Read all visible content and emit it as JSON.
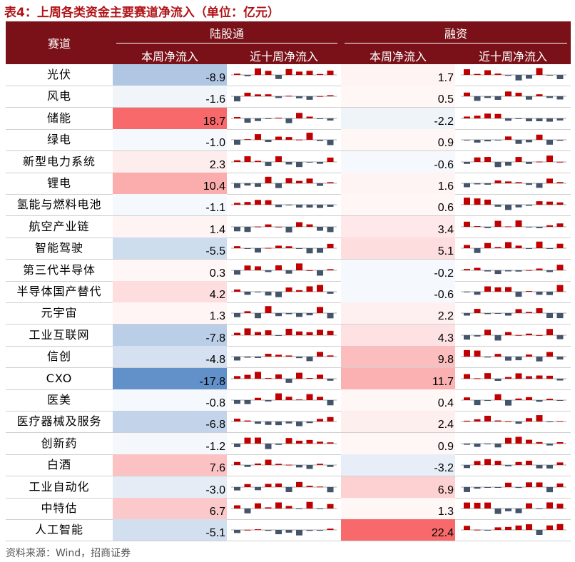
{
  "title": "表4：上周各类资金主要赛道净流入（单位：亿元）",
  "header": {
    "track": "赛道",
    "lgt": "陆股通",
    "rz": "融资",
    "week": "本周净流入",
    "ten": "近十周净流入"
  },
  "colors": {
    "pos": "#c00000",
    "neg": "#44546a",
    "pos_cell": "#f8696b",
    "neg_cell": "#5a8ac6"
  },
  "rows": [
    {
      "name": "光伏",
      "lgt": "-8.9",
      "rz": "1.7"
    },
    {
      "name": "风电",
      "lgt": "-1.6",
      "rz": "0.5"
    },
    {
      "name": "储能",
      "lgt": "18.7",
      "rz": "-2.2"
    },
    {
      "name": "绿电",
      "lgt": "-1.0",
      "rz": "0.9"
    },
    {
      "name": "新型电力系统",
      "lgt": "2.3",
      "rz": "-0.6"
    },
    {
      "name": "锂电",
      "lgt": "10.4",
      "rz": "1.6"
    },
    {
      "name": "氢能与燃料电池",
      "lgt": "-1.1",
      "rz": "0.6"
    },
    {
      "name": "航空产业链",
      "lgt": "1.4",
      "rz": "3.4"
    },
    {
      "name": "智能驾驶",
      "lgt": "-5.5",
      "rz": "5.1"
    },
    {
      "name": "第三代半导体",
      "lgt": "0.3",
      "rz": "-0.2"
    },
    {
      "name": "半导体国产替代",
      "lgt": "4.2",
      "rz": "-0.6"
    },
    {
      "name": "元宇宙",
      "lgt": "1.3",
      "rz": "2.2"
    },
    {
      "name": "工业互联网",
      "lgt": "-7.8",
      "rz": "4.3"
    },
    {
      "name": "信创",
      "lgt": "-4.8",
      "rz": "9.8"
    },
    {
      "name": "CXO",
      "lgt": "-17.8",
      "rz": "11.7"
    },
    {
      "name": "医美",
      "lgt": "-0.8",
      "rz": "0.4"
    },
    {
      "name": "医疗器械及服务",
      "lgt": "-6.8",
      "rz": "2.4"
    },
    {
      "name": "创新药",
      "lgt": "-1.2",
      "rz": "0.9"
    },
    {
      "name": "白酒",
      "lgt": "7.6",
      "rz": "-3.2"
    },
    {
      "name": "工业自动化",
      "lgt": "-3.0",
      "rz": "6.9"
    },
    {
      "name": "中特估",
      "lgt": "6.7",
      "rz": "1.3"
    },
    {
      "name": "人工智能",
      "lgt": "-5.1",
      "rz": "22.4"
    }
  ],
  "source": "资料来源：Wind，招商证券"
}
